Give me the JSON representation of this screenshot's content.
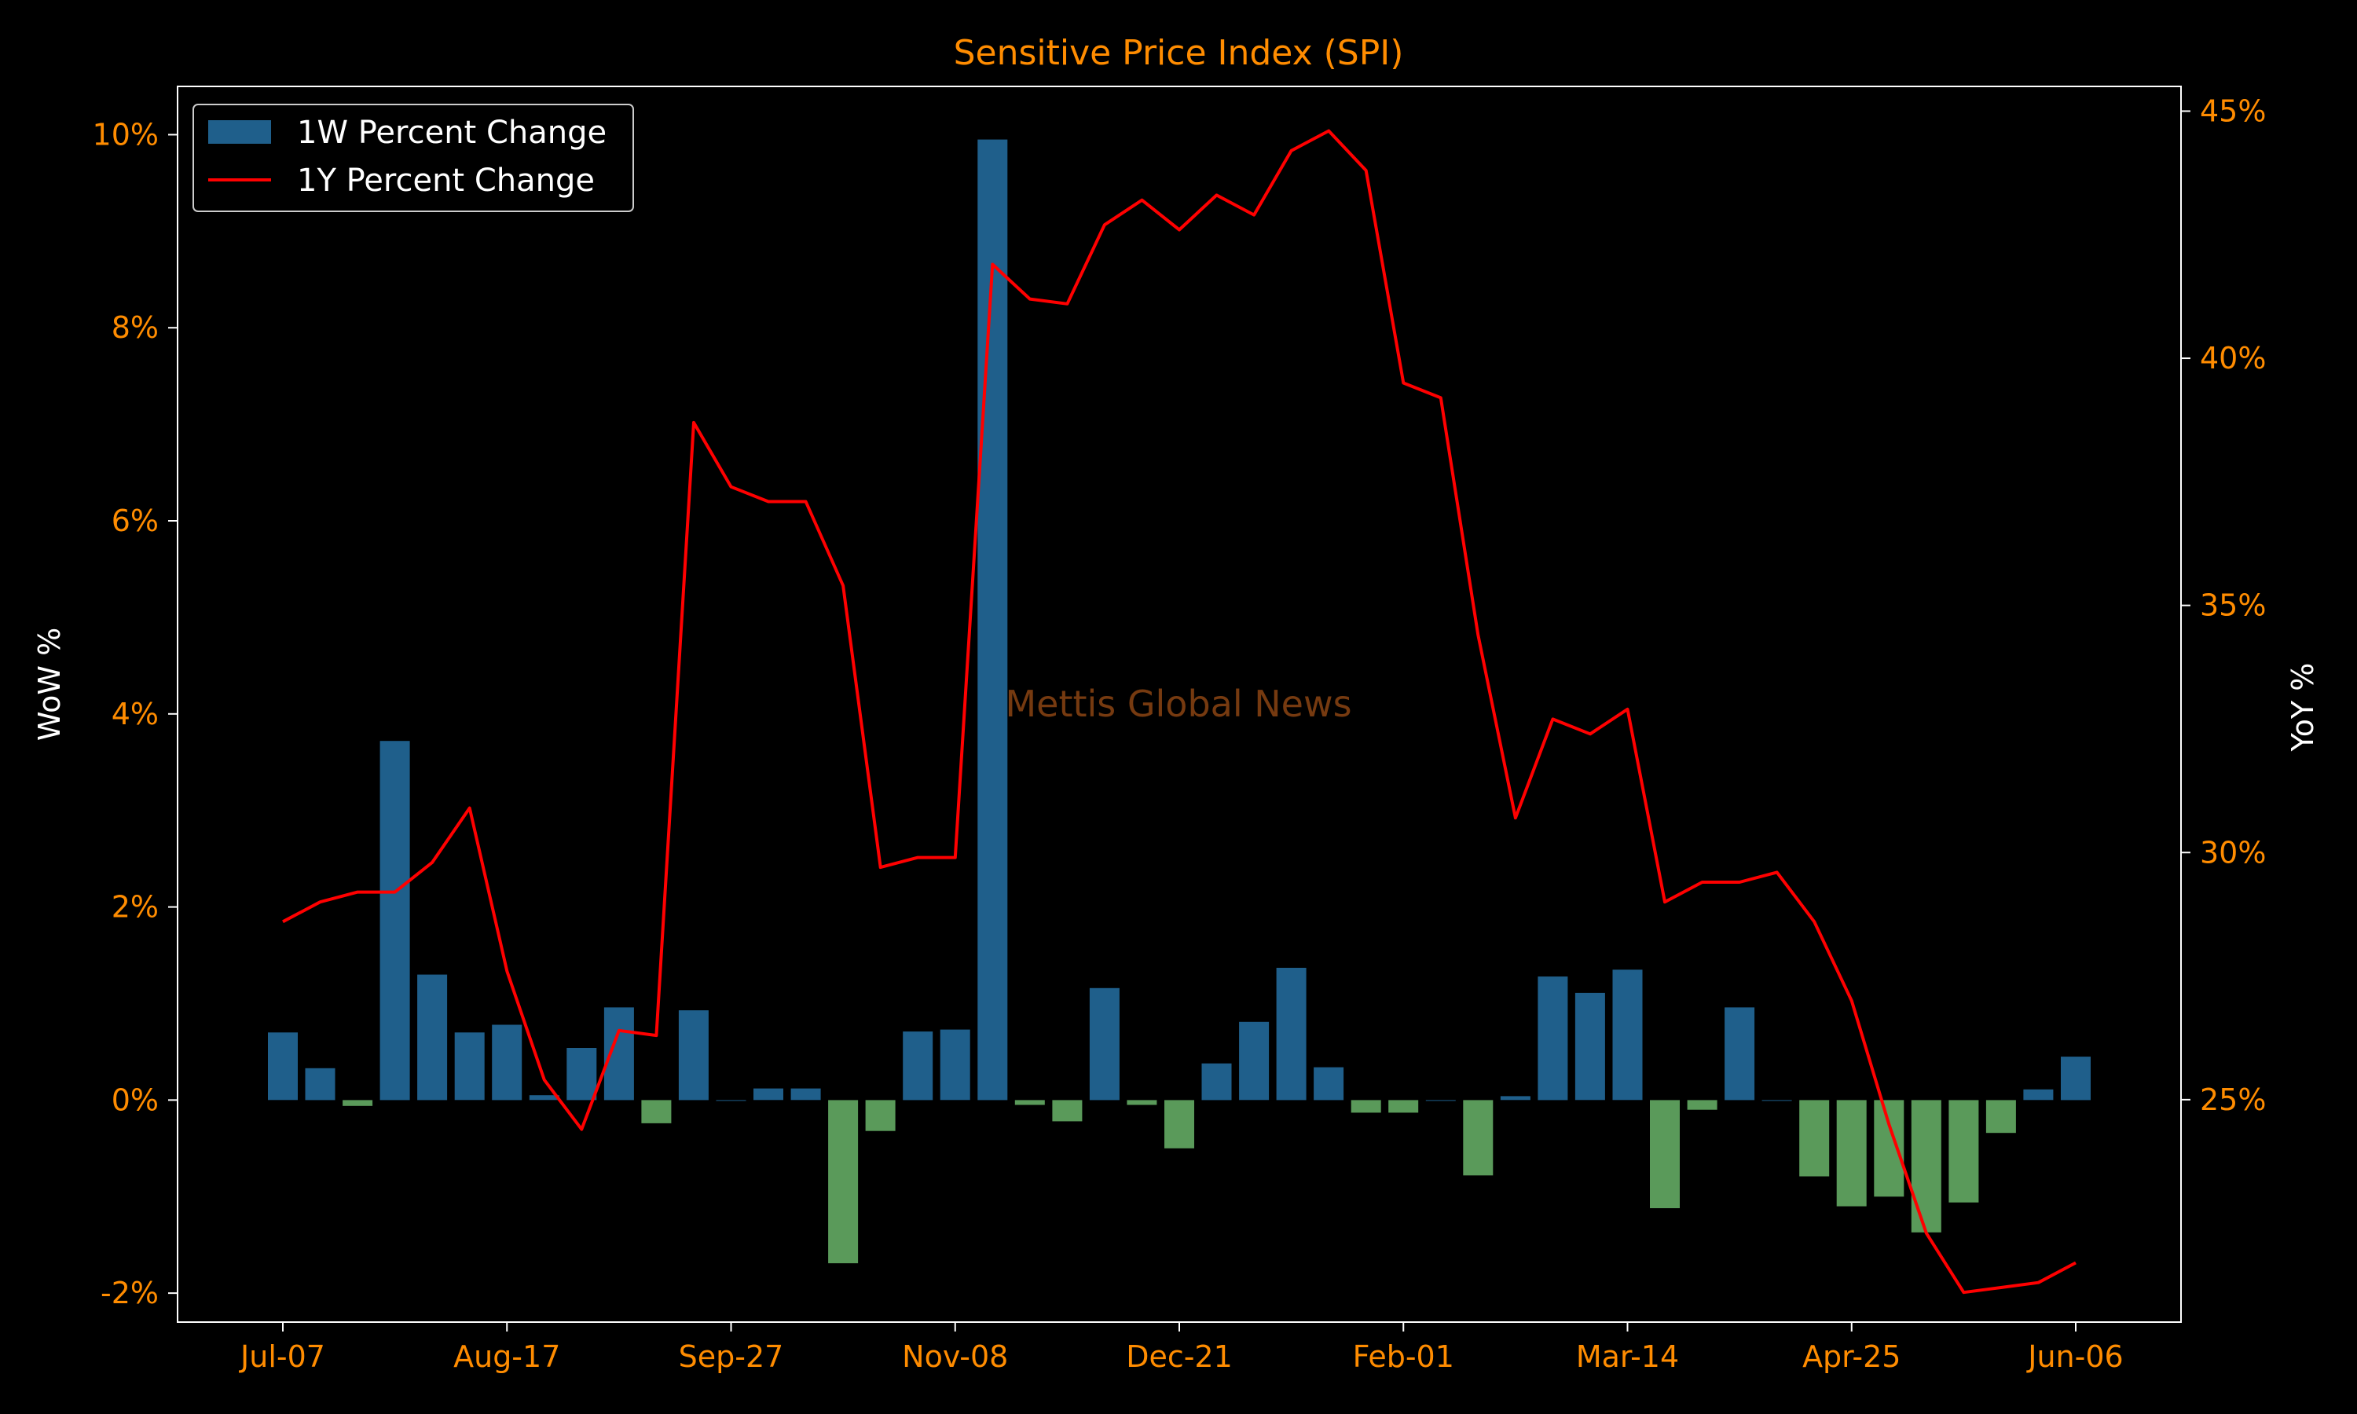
{
  "chart_data": {
    "type": "bar",
    "title": "Sensitive Price Index (SPI)",
    "watermark": "Mettis Global News",
    "x_tick_labels": [
      "Jul-07",
      "Aug-17",
      "Sep-27",
      "Nov-08",
      "Dec-21",
      "Feb-01",
      "Mar-14",
      "Apr-25",
      "Jun-06"
    ],
    "y_left": {
      "label": "WoW %",
      "range": [
        -2.3,
        10.5
      ],
      "ticks": [
        -2,
        0,
        2,
        4,
        6,
        8,
        10
      ],
      "tick_labels": [
        "-2%",
        "0%",
        "2%",
        "4%",
        "6%",
        "8%",
        "10%"
      ]
    },
    "y_right": {
      "label": "YoY %",
      "range": [
        20.5,
        45.5
      ],
      "ticks": [
        25,
        30,
        35,
        40,
        45
      ],
      "tick_labels": [
        "25%",
        "30%",
        "35%",
        "40%",
        "45%"
      ]
    },
    "legend": {
      "position": "top-left",
      "items": [
        {
          "label": "1W Percent Change",
          "kind": "bar",
          "color": "#1f5f8b"
        },
        {
          "label": "1Y Percent Change",
          "kind": "line",
          "color": "#ff0000"
        }
      ]
    },
    "colors": {
      "positive_bar": "#1f5f8b",
      "negative_bar": "#5a9a5a",
      "line": "#ff0000",
      "text_accent": "#ff8c00",
      "frame": "#ffffff"
    },
    "series": [
      {
        "name": "1W Percent Change",
        "kind": "bar",
        "axis": "left",
        "values": [
          0.7,
          0.33,
          -0.06,
          3.72,
          1.3,
          0.7,
          0.78,
          0.05,
          0.54,
          0.96,
          -0.24,
          0.93,
          0.0,
          0.12,
          0.12,
          -1.69,
          -0.32,
          0.71,
          0.73,
          9.95,
          -0.05,
          -0.22,
          1.16,
          -0.05,
          -0.5,
          0.38,
          0.81,
          1.37,
          0.34,
          -0.13,
          -0.13,
          0.0,
          -0.78,
          0.04,
          1.28,
          1.11,
          1.35,
          -1.12,
          -0.1,
          0.96,
          0.0,
          -0.79,
          -1.1,
          -1.0,
          -1.37,
          -1.06,
          -0.34,
          0.11,
          0.45
        ]
      },
      {
        "name": "1Y Percent Change",
        "kind": "line",
        "axis": "right",
        "values": [
          28.6,
          29.0,
          29.2,
          29.2,
          29.8,
          30.9,
          27.6,
          25.4,
          24.4,
          26.4,
          26.3,
          38.7,
          37.4,
          37.1,
          37.1,
          35.4,
          29.7,
          29.9,
          29.9,
          41.9,
          41.2,
          41.1,
          42.7,
          43.2,
          42.6,
          43.3,
          42.9,
          44.2,
          44.6,
          43.8,
          39.5,
          39.2,
          34.4,
          30.7,
          32.7,
          32.4,
          32.9,
          29.0,
          29.4,
          29.4,
          29.6,
          28.6,
          27.0,
          24.5,
          22.3,
          21.1,
          21.2,
          21.3,
          21.7
        ]
      }
    ]
  }
}
